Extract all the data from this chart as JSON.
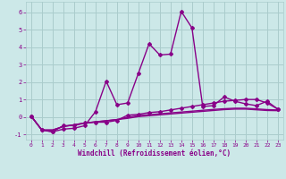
{
  "x": [
    0,
    1,
    2,
    3,
    4,
    5,
    6,
    7,
    8,
    9,
    10,
    11,
    12,
    13,
    14,
    15,
    16,
    17,
    18,
    19,
    20,
    21,
    22,
    23
  ],
  "line1_y": [
    0.05,
    -0.75,
    -0.85,
    -0.7,
    -0.65,
    -0.5,
    0.3,
    2.05,
    0.7,
    0.8,
    2.5,
    4.2,
    3.55,
    3.6,
    6.05,
    5.1,
    0.6,
    0.65,
    1.15,
    0.9,
    0.75,
    0.65,
    0.9,
    0.45
  ],
  "line2_y": [
    0.05,
    -0.75,
    -0.85,
    -0.5,
    -0.5,
    -0.35,
    -0.3,
    -0.3,
    -0.2,
    0.1,
    0.15,
    0.25,
    0.3,
    0.4,
    0.5,
    0.6,
    0.7,
    0.8,
    0.9,
    0.95,
    1.0,
    1.0,
    0.8,
    0.45
  ],
  "line3_y": [
    0.05,
    -0.75,
    -0.75,
    -0.55,
    -0.45,
    -0.35,
    -0.28,
    -0.22,
    -0.15,
    -0.02,
    0.08,
    0.13,
    0.18,
    0.23,
    0.28,
    0.33,
    0.38,
    0.43,
    0.47,
    0.5,
    0.5,
    0.46,
    0.42,
    0.4
  ],
  "line4_y": [
    0.05,
    -0.75,
    -0.75,
    -0.55,
    -0.45,
    -0.35,
    -0.28,
    -0.22,
    -0.15,
    -0.08,
    0.02,
    0.07,
    0.12,
    0.17,
    0.22,
    0.27,
    0.32,
    0.37,
    0.42,
    0.45,
    0.45,
    0.41,
    0.37,
    0.36
  ],
  "bg_color": "#cce8e8",
  "grid_color": "#aacccc",
  "line_color": "#880088",
  "ylim": [
    -1.3,
    6.6
  ],
  "xlim": [
    -0.5,
    23.5
  ],
  "yticks": [
    -1,
    0,
    1,
    2,
    3,
    4,
    5,
    6
  ],
  "xticks": [
    0,
    1,
    2,
    3,
    4,
    5,
    6,
    7,
    8,
    9,
    10,
    11,
    12,
    13,
    14,
    15,
    16,
    17,
    18,
    19,
    20,
    21,
    22,
    23
  ],
  "xlabel": "Windchill (Refroidissement éolien,°C)"
}
